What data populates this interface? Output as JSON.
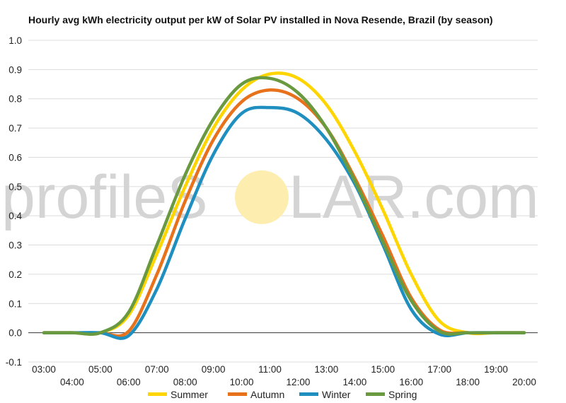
{
  "chart_data": {
    "type": "line",
    "title": "Hourly avg kWh electricity output per kW of Solar PV installed in Nova Resende, Brazil (by season)",
    "xlabel": "",
    "ylabel": "",
    "ylim": [
      -0.1,
      1.0
    ],
    "yticks": [
      "-0.1",
      "0.0",
      "0.1",
      "0.2",
      "0.3",
      "0.4",
      "0.5",
      "0.6",
      "0.7",
      "0.8",
      "0.9",
      "1.0"
    ],
    "x": [
      "03:00",
      "04:00",
      "05:00",
      "06:00",
      "07:00",
      "08:00",
      "09:00",
      "10:00",
      "11:00",
      "12:00",
      "13:00",
      "14:00",
      "15:00",
      "16:00",
      "17:00",
      "18:00",
      "19:00",
      "20:00"
    ],
    "grid": true,
    "legend_position": "bottom",
    "series": [
      {
        "name": "Summer",
        "color": "#ffd500",
        "values": [
          0.0,
          0.0,
          0.0,
          0.06,
          0.27,
          0.5,
          0.7,
          0.83,
          0.885,
          0.87,
          0.78,
          0.62,
          0.42,
          0.2,
          0.04,
          0.0,
          0.0,
          0.0
        ]
      },
      {
        "name": "Autumn",
        "color": "#e8711c",
        "values": [
          0.0,
          0.0,
          0.0,
          0.005,
          0.2,
          0.45,
          0.66,
          0.79,
          0.83,
          0.8,
          0.7,
          0.53,
          0.33,
          0.12,
          0.01,
          0.0,
          0.0,
          0.0
        ]
      },
      {
        "name": "Winter",
        "color": "#1f8fc0",
        "values": [
          0.0,
          0.0,
          0.0,
          -0.01,
          0.15,
          0.39,
          0.61,
          0.75,
          0.77,
          0.75,
          0.66,
          0.51,
          0.3,
          0.08,
          -0.005,
          0.0,
          0.0,
          0.0
        ]
      },
      {
        "name": "Spring",
        "color": "#6a9a3f",
        "values": [
          0.0,
          0.0,
          0.0,
          0.07,
          0.3,
          0.54,
          0.73,
          0.85,
          0.87,
          0.82,
          0.7,
          0.52,
          0.31,
          0.11,
          0.005,
          0.0,
          0.0,
          0.0
        ]
      }
    ]
  },
  "watermark": {
    "text": "profileSOLAR.com",
    "prefix": "profileS",
    "suffix": "LAR.com",
    "color": "#d4d4d4",
    "sun_color": "#fdeeb0"
  }
}
